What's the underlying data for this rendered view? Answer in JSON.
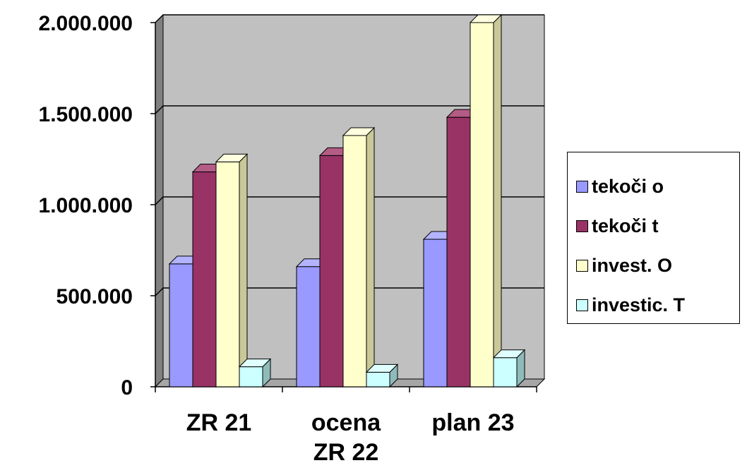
{
  "chart_data": {
    "type": "bar",
    "categories": [
      [
        "ZR 21"
      ],
      [
        "ocena",
        "ZR 22"
      ],
      [
        "plan 23"
      ]
    ],
    "yticks": [
      "0",
      "500.000",
      "1.000.000",
      "1.500.000",
      "2.000.000"
    ],
    "ylim": [
      0,
      2000000
    ],
    "grid": true,
    "legend_position": "right",
    "series": [
      {
        "name": "tekoči o",
        "values": [
          675000,
          660000,
          810000
        ],
        "color": "#9999ff",
        "side": "#6666cc",
        "top": "#b3b3ff"
      },
      {
        "name": "tekoči t",
        "values": [
          1180000,
          1270000,
          1480000
        ],
        "color": "#993366",
        "side": "#6d2449",
        "top": "#b35c85"
      },
      {
        "name": "invest. O",
        "values": [
          1235000,
          1380000,
          2000000
        ],
        "color": "#ffffcc",
        "side": "#c8c89a",
        "top": "#ffffe0"
      },
      {
        "name": "investic. T",
        "values": [
          110000,
          80000,
          160000
        ],
        "color": "#ccffff",
        "side": "#8fbaba",
        "top": "#e0ffff"
      }
    ],
    "colors": {
      "plot_wall": "#c0c0c0",
      "wall_side": "#808080",
      "floor": "#a6a6a6",
      "gridline": "#000000"
    }
  }
}
